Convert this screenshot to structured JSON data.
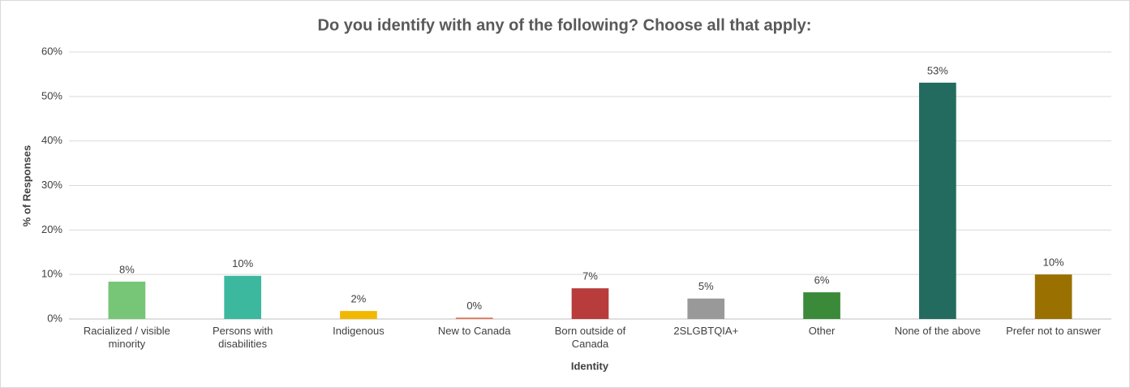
{
  "chart_data": {
    "type": "bar",
    "title": "Do you identify with any of the following? Choose all that apply:",
    "x_label": "Identity",
    "y_label": "% of Responses",
    "categories": [
      "Racialized / visible minority",
      "Persons with disabilities",
      "Indigenous",
      "New to Canada",
      "Born outside of Canada",
      "2SLGBTQIA+",
      "Other",
      "None of the above",
      "Prefer not to answer"
    ],
    "values": [
      8.4,
      9.7,
      1.8,
      0.3,
      6.9,
      4.6,
      6.0,
      53.1,
      10.0
    ],
    "value_labels": [
      "8%",
      "10%",
      "2%",
      "0%",
      "7%",
      "5%",
      "6%",
      "53%",
      "10%"
    ],
    "colors": [
      "#77c577",
      "#3cb89e",
      "#f2b800",
      "#e07050",
      "#b93c3c",
      "#999999",
      "#3a8a3a",
      "#236b5e",
      "#9a7000"
    ],
    "ylim": [
      0,
      60
    ],
    "yticks": [
      {
        "value": 0,
        "label": "0%"
      },
      {
        "value": 10,
        "label": "10%"
      },
      {
        "value": 20,
        "label": "20%"
      },
      {
        "value": 30,
        "label": "30%"
      },
      {
        "value": 40,
        "label": "40%"
      },
      {
        "value": 50,
        "label": "50%"
      },
      {
        "value": 60,
        "label": "60%"
      }
    ],
    "grid": true
  }
}
